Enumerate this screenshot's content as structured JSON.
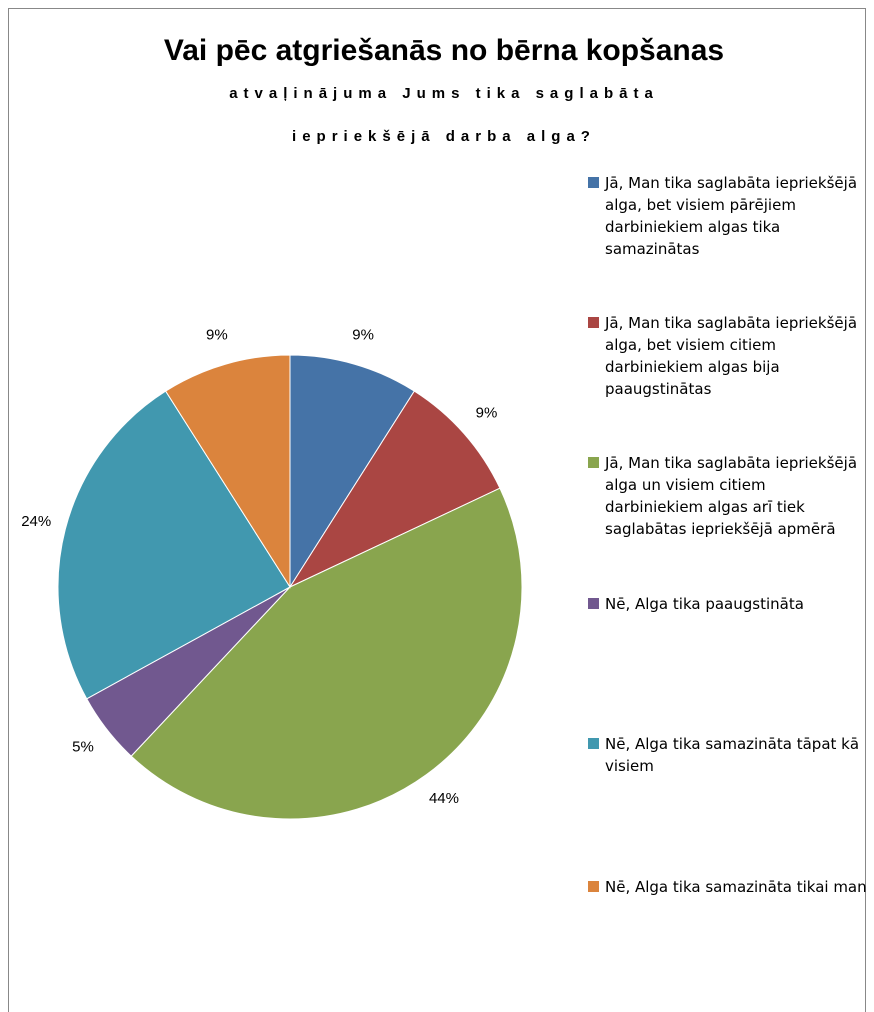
{
  "chart_data": {
    "type": "pie",
    "title": "Vai pēc atgriešanās no bērna kopšanas",
    "subtitle": [
      "atvaļinājuma Jums tika saglabāta",
      "iepriekšējā darba alga?"
    ],
    "categories": [
      "Jā, Man tika saglabāta iepriekšējā alga, bet visiem pārējiem darbiniekiem algas tika samazinātas",
      "Jā, Man tika saglabāta iepriekšējā alga, bet visiem citiem darbiniekiem algas bija paaugstinātas",
      "Jā, Man tika saglabāta iepriekšējā alga un visiem citiem darbiniekiem algas arī tiek saglabātas iepriekšējā apmērā",
      "Nē, Alga tika paaugstināta",
      "Nē, Alga tika samazināta tāpat kā visiem",
      "Nē, Alga tika samazināta tikai man"
    ],
    "values": [
      9,
      9,
      44,
      5,
      24,
      9
    ],
    "value_labels": [
      "9%",
      "9%",
      "44%",
      "5%",
      "24%",
      "9%"
    ],
    "colors": [
      "#4573a7",
      "#aa4643",
      "#89a54e",
      "#71588f",
      "#4198af",
      "#db843d"
    ],
    "legend": "right"
  }
}
